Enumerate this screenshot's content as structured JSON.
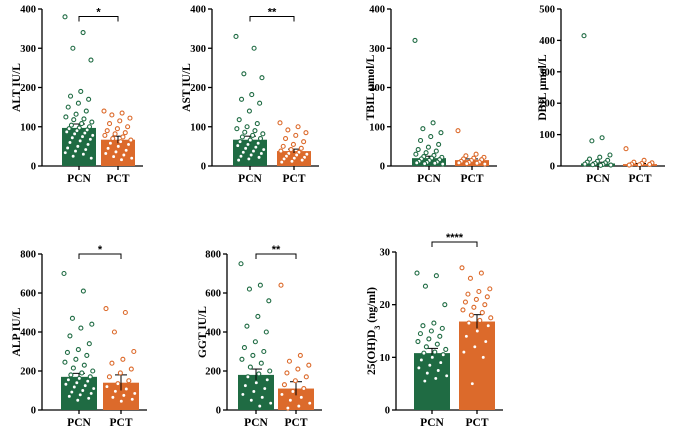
{
  "chart_data": [
    {
      "type": "bar",
      "ylabel": "ALT IU/L",
      "ylim": [
        0,
        400
      ],
      "yticks": [
        0,
        100,
        200,
        300,
        400
      ],
      "significance": "*",
      "colors": [
        "#1f6b43",
        "#dc6a2b"
      ],
      "categories": [
        "PCN",
        "PCT"
      ],
      "values": [
        97,
        67
      ],
      "errors": [
        10,
        9
      ],
      "points": [
        [
          380,
          340,
          300,
          270,
          190,
          178,
          170,
          160,
          150,
          140,
          132,
          125,
          120,
          118,
          112,
          108,
          104,
          100,
          97,
          95,
          92,
          90,
          87,
          84,
          82,
          78,
          75,
          72,
          68,
          64,
          60,
          55,
          50,
          46,
          42,
          38,
          34,
          30,
          25,
          20
        ],
        [
          140,
          135,
          130,
          122,
          115,
          108,
          100,
          95,
          90,
          85,
          82,
          78,
          74,
          70,
          66,
          62,
          58,
          55,
          50,
          45,
          40,
          36,
          32,
          28,
          24,
          20,
          16
        ]
      ]
    },
    {
      "type": "bar",
      "ylabel": "AST IU/L",
      "ylim": [
        0,
        400
      ],
      "yticks": [
        0,
        100,
        200,
        300,
        400
      ],
      "significance": "**",
      "colors": [
        "#1f6b43",
        "#dc6a2b"
      ],
      "categories": [
        "PCN",
        "PCT"
      ],
      "values": [
        67,
        38
      ],
      "errors": [
        9,
        5
      ],
      "points": [
        [
          330,
          300,
          235,
          225,
          182,
          170,
          160,
          140,
          118,
          108,
          100,
          95,
          90,
          86,
          82,
          78,
          74,
          70,
          66,
          62,
          58,
          55,
          52,
          48,
          45,
          42,
          38,
          35,
          32,
          28,
          25,
          22,
          18,
          15
        ],
        [
          110,
          100,
          92,
          85,
          78,
          70,
          62,
          55,
          50,
          45,
          42,
          38,
          35,
          32,
          30,
          28,
          25,
          22,
          20,
          18,
          15,
          12,
          10
        ]
      ]
    },
    {
      "type": "bar",
      "ylabel": "TBIL μmol/L",
      "ylim": [
        0,
        400
      ],
      "yticks": [
        0,
        100,
        200,
        300,
        400
      ],
      "significance": "",
      "colors": [
        "#1f6b43",
        "#dc6a2b"
      ],
      "categories": [
        "PCN",
        "PCT"
      ],
      "values": [
        20,
        15
      ],
      "errors": [
        5,
        3
      ],
      "points": [
        [
          320,
          110,
          95,
          85,
          75,
          65,
          55,
          48,
          42,
          38,
          34,
          30,
          27,
          24,
          22,
          20,
          18,
          16,
          14,
          12,
          10,
          9,
          8,
          7,
          6,
          5
        ],
        [
          90,
          30,
          26,
          22,
          20,
          18,
          16,
          14,
          12,
          10,
          9,
          8,
          7,
          6,
          5
        ]
      ]
    },
    {
      "type": "bar",
      "ylabel": "DBIL μmol/L",
      "ylim": [
        0,
        500
      ],
      "yticks": [
        0,
        100,
        200,
        300,
        400,
        500
      ],
      "significance": "",
      "colors": [
        "#1f6b43",
        "#dc6a2b"
      ],
      "categories": [
        "PCN",
        "PCT"
      ],
      "values": [
        8,
        6
      ],
      "errors": [
        4,
        2
      ],
      "points": [
        [
          415,
          90,
          80,
          35,
          28,
          22,
          18,
          15,
          12,
          10,
          8,
          6,
          5,
          4,
          3,
          2
        ],
        [
          55,
          18,
          12,
          10,
          8,
          6,
          5,
          4,
          3
        ]
      ]
    },
    {
      "type": "bar",
      "ylabel": "ALP IU/L",
      "ylim": [
        0,
        800
      ],
      "yticks": [
        0,
        200,
        400,
        600,
        800
      ],
      "significance": "*",
      "colors": [
        "#1f6b43",
        "#dc6a2b"
      ],
      "categories": [
        "PCN",
        "PCT"
      ],
      "values": [
        170,
        140
      ],
      "errors": [
        18,
        40
      ],
      "points": [
        [
          700,
          610,
          470,
          440,
          420,
          380,
          340,
          310,
          295,
          280,
          260,
          245,
          230,
          215,
          200,
          190,
          180,
          170,
          162,
          155,
          148,
          140,
          132,
          125,
          118,
          110,
          100,
          92,
          85,
          78,
          70,
          60,
          50
        ],
        [
          520,
          500,
          400,
          300,
          260,
          240,
          210,
          190,
          170,
          150,
          135,
          120,
          108,
          96,
          85,
          75,
          65,
          55,
          45
        ]
      ]
    },
    {
      "type": "bar",
      "ylabel": "GGT IU/L",
      "ylim": [
        0,
        800
      ],
      "yticks": [
        0,
        200,
        400,
        600,
        800
      ],
      "significance": "**",
      "colors": [
        "#1f6b43",
        "#dc6a2b"
      ],
      "categories": [
        "PCN",
        "PCT"
      ],
      "values": [
        180,
        110
      ],
      "errors": [
        30,
        35
      ],
      "points": [
        [
          750,
          640,
          620,
          560,
          480,
          430,
          400,
          350,
          320,
          300,
          280,
          260,
          240,
          220,
          200,
          185,
          170,
          155,
          140,
          125,
          110,
          95,
          80,
          65,
          50,
          35,
          20
        ],
        [
          640,
          280,
          250,
          230,
          210,
          190,
          170,
          150,
          130,
          110,
          95,
          80,
          65,
          50,
          35,
          20,
          10
        ]
      ]
    },
    {
      "type": "bar",
      "ylabel": "25(OH)D3 (ng/ml)",
      "ylim": [
        0,
        30
      ],
      "yticks": [
        0,
        10,
        20,
        30
      ],
      "significance": "****",
      "colors": [
        "#1f6b43",
        "#dc6a2b"
      ],
      "categories": [
        "PCN",
        "PCT"
      ],
      "values": [
        10.8,
        16.8
      ],
      "errors": [
        0.9,
        1.3
      ],
      "points": [
        [
          26,
          25.5,
          23.5,
          20,
          16.5,
          16,
          15.5,
          15,
          14.5,
          14,
          13.5,
          13,
          12.5,
          12,
          11.5,
          11,
          10.8,
          10.5,
          10,
          9.5,
          9,
          8.5,
          8,
          7.5,
          7,
          6.5,
          6,
          5.5
        ],
        [
          27,
          26,
          25,
          23,
          22.5,
          22,
          21.5,
          21,
          20.5,
          20,
          19.5,
          19,
          18.5,
          18,
          17.5,
          17,
          16.5,
          16,
          15,
          14,
          13,
          12,
          11,
          10,
          5
        ]
      ]
    }
  ]
}
